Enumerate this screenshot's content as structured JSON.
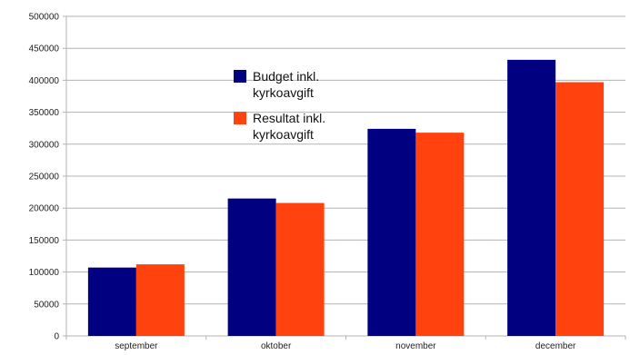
{
  "chart_data": {
    "type": "bar",
    "title": "",
    "xlabel": "",
    "ylabel": "",
    "categories": [
      "september",
      "oktober",
      "november",
      "december"
    ],
    "series": [
      {
        "name": "Budget inkl. kyrkoavgift",
        "values": [
          107000,
          215000,
          324000,
          432000
        ]
      },
      {
        "name": "Resultat inkl. kyrkoavgift",
        "values": [
          112000,
          208000,
          318000,
          397000
        ]
      }
    ],
    "ylim": [
      0,
      500000
    ],
    "yticks": [
      "0",
      "50000",
      "100000",
      "150000",
      "200000",
      "250000",
      "300000",
      "350000",
      "400000",
      "450000",
      "500000"
    ],
    "grid": true,
    "legend_position": "top-center"
  },
  "colors": {
    "budget": "#000080",
    "resultat": "#ff420e",
    "grid": "#b3b3b3",
    "axis": "#b3b3b3"
  }
}
